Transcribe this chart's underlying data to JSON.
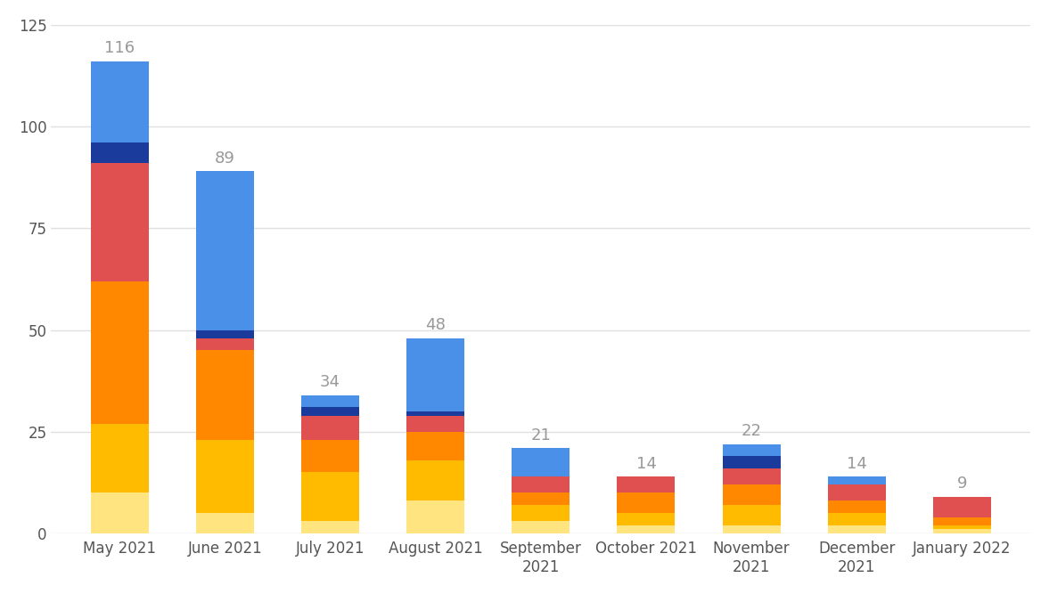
{
  "categories": [
    "May 2021",
    "June 2021",
    "July 2021",
    "August 2021",
    "September\n2021",
    "October 2021",
    "November\n2021",
    "December\n2021",
    "January 2022"
  ],
  "totals": [
    116,
    89,
    34,
    48,
    21,
    14,
    22,
    14,
    9
  ],
  "segments": [
    [
      10,
      5,
      3,
      8,
      3,
      2,
      2,
      2,
      1
    ],
    [
      17,
      18,
      12,
      10,
      4,
      3,
      5,
      3,
      1
    ],
    [
      35,
      22,
      8,
      7,
      3,
      5,
      5,
      3,
      2
    ],
    [
      29,
      3,
      6,
      4,
      4,
      4,
      4,
      4,
      5
    ],
    [
      5,
      2,
      2,
      1,
      0,
      0,
      3,
      0,
      0
    ],
    [
      20,
      39,
      3,
      18,
      7,
      0,
      3,
      2,
      0
    ]
  ],
  "colors": [
    "#FFE480",
    "#FFBB00",
    "#FF8800",
    "#E05050",
    "#1A3A9C",
    "#4A8FE8"
  ],
  "total_label_color": "#999999",
  "total_label_fontsize": 13,
  "background_color": "#FFFFFF",
  "grid_color": "#E0E0E0",
  "ylim": [
    0,
    125
  ],
  "yticks": [
    0,
    25,
    50,
    75,
    100,
    125
  ],
  "bar_width": 0.55,
  "tick_fontsize": 12
}
